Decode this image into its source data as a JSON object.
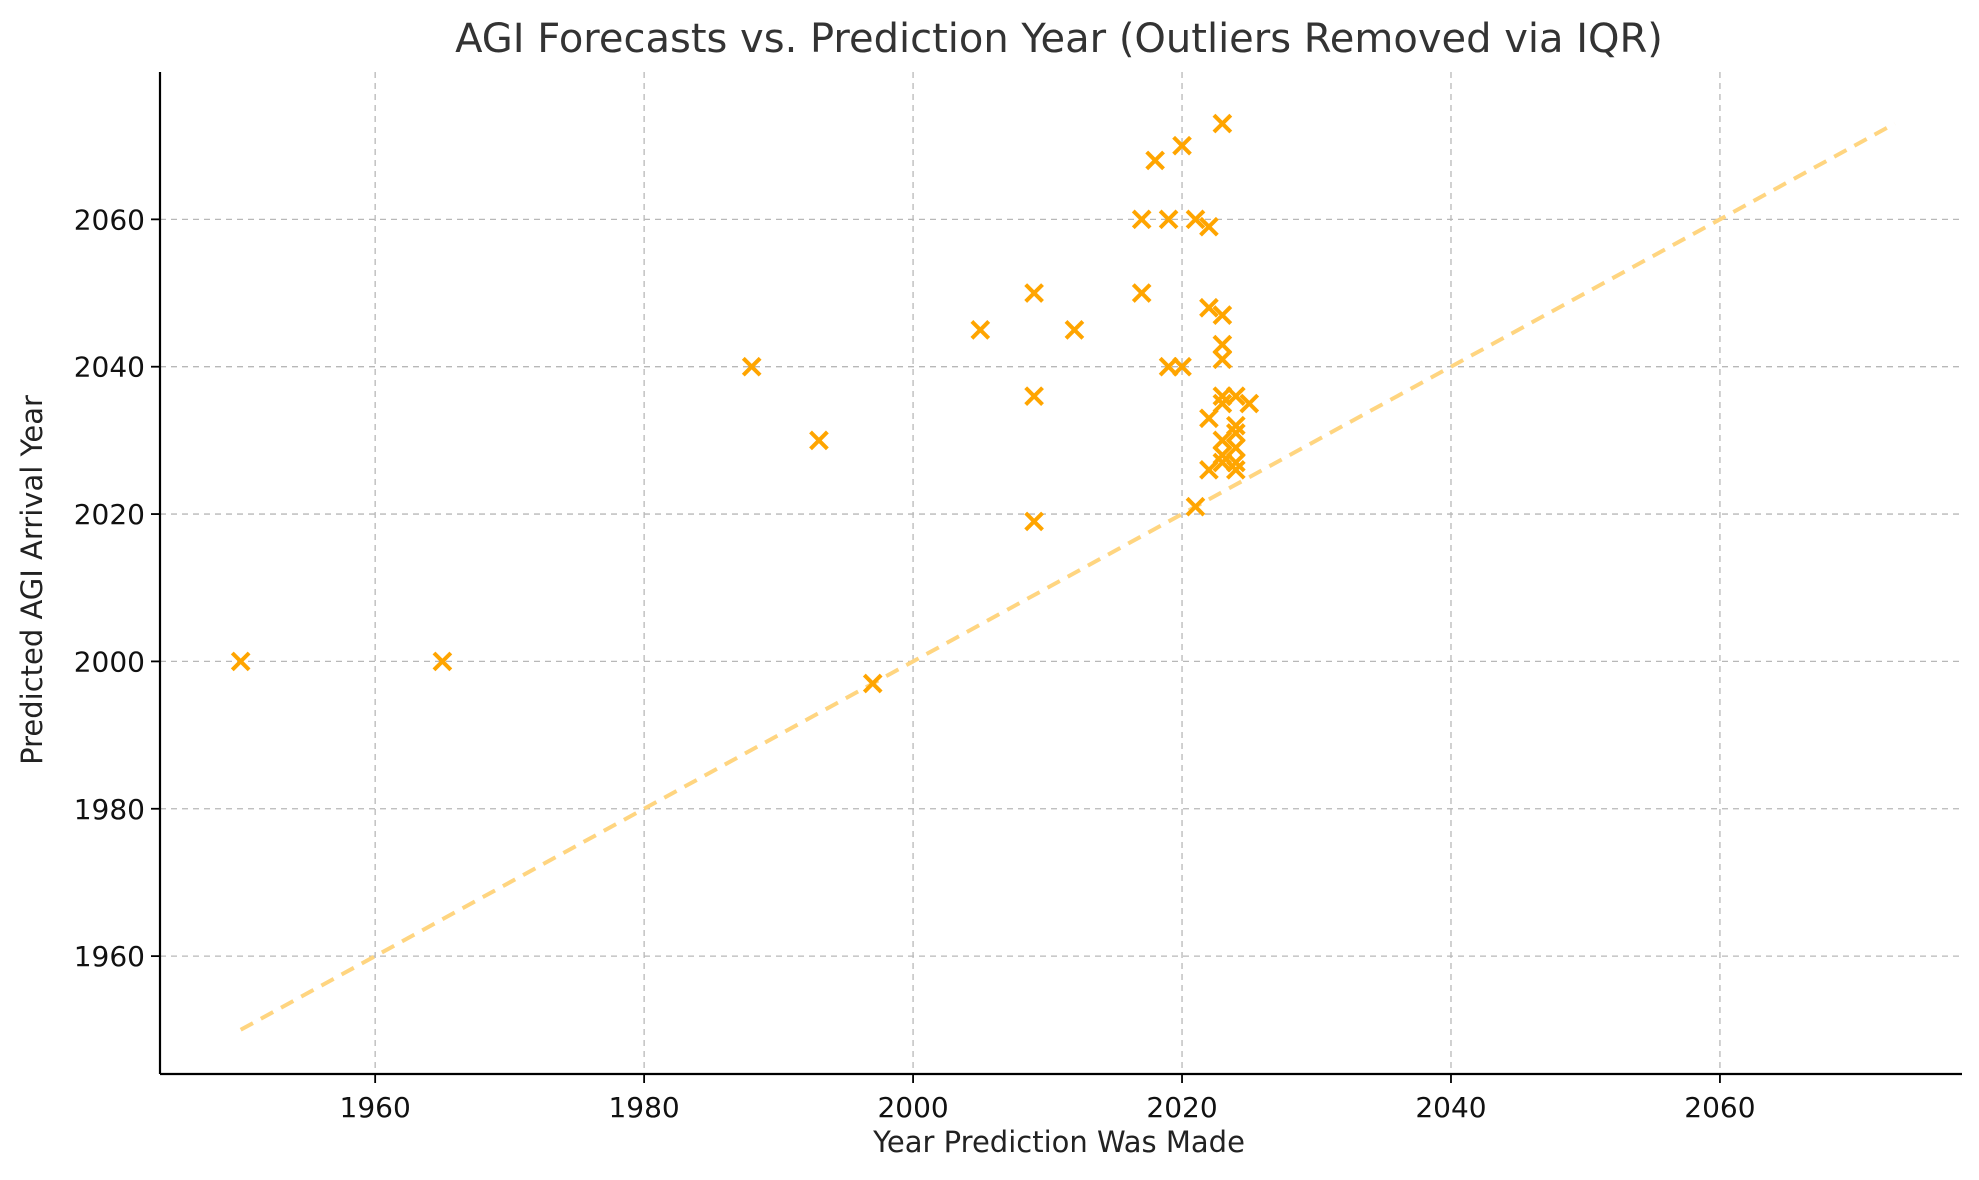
{
  "chart_data": {
    "type": "scatter",
    "title": "AGI Forecasts vs. Prediction Year (Outliers Removed via IQR)",
    "xlabel": "Year Prediction Was Made",
    "ylabel": "Predicted AGI Arrival Year",
    "xlim": [
      1944,
      2078
    ],
    "ylim": [
      1944,
      2080
    ],
    "xticks": [
      1960,
      1980,
      2000,
      2020,
      2040,
      2060
    ],
    "yticks": [
      1960,
      1980,
      2000,
      2020,
      2040,
      2060
    ],
    "grid": true,
    "marker": "x",
    "colors": {
      "points": "#ffa500",
      "reference_line": "#ffd580"
    },
    "points": [
      {
        "x": 1950,
        "y": 2000
      },
      {
        "x": 1965,
        "y": 2000
      },
      {
        "x": 1988,
        "y": 2040
      },
      {
        "x": 1993,
        "y": 2030
      },
      {
        "x": 1997,
        "y": 1997
      },
      {
        "x": 2005,
        "y": 2045
      },
      {
        "x": 2009,
        "y": 2050
      },
      {
        "x": 2009,
        "y": 2036
      },
      {
        "x": 2009,
        "y": 2019
      },
      {
        "x": 2012,
        "y": 2045
      },
      {
        "x": 2017,
        "y": 2060
      },
      {
        "x": 2017,
        "y": 2050
      },
      {
        "x": 2018,
        "y": 2068
      },
      {
        "x": 2019,
        "y": 2060
      },
      {
        "x": 2019,
        "y": 2040
      },
      {
        "x": 2020,
        "y": 2070
      },
      {
        "x": 2020,
        "y": 2040
      },
      {
        "x": 2021,
        "y": 2060
      },
      {
        "x": 2021,
        "y": 2021
      },
      {
        "x": 2022,
        "y": 2059
      },
      {
        "x": 2022,
        "y": 2048
      },
      {
        "x": 2022,
        "y": 2033
      },
      {
        "x": 2022,
        "y": 2026
      },
      {
        "x": 2023,
        "y": 2073
      },
      {
        "x": 2023,
        "y": 2047
      },
      {
        "x": 2023,
        "y": 2043
      },
      {
        "x": 2023,
        "y": 2041
      },
      {
        "x": 2023,
        "y": 2036
      },
      {
        "x": 2023,
        "y": 2035
      },
      {
        "x": 2023,
        "y": 2030
      },
      {
        "x": 2023,
        "y": 2028
      },
      {
        "x": 2023,
        "y": 2027
      },
      {
        "x": 2024,
        "y": 2036
      },
      {
        "x": 2024,
        "y": 2032
      },
      {
        "x": 2024,
        "y": 2031
      },
      {
        "x": 2024,
        "y": 2029
      },
      {
        "x": 2024,
        "y": 2027
      },
      {
        "x": 2024,
        "y": 2026
      },
      {
        "x": 2025,
        "y": 2035
      }
    ],
    "reference_line": {
      "style": "dashed",
      "from": {
        "x": 1950,
        "y": 1950
      },
      "to": {
        "x": 2073,
        "y": 2073
      }
    }
  }
}
